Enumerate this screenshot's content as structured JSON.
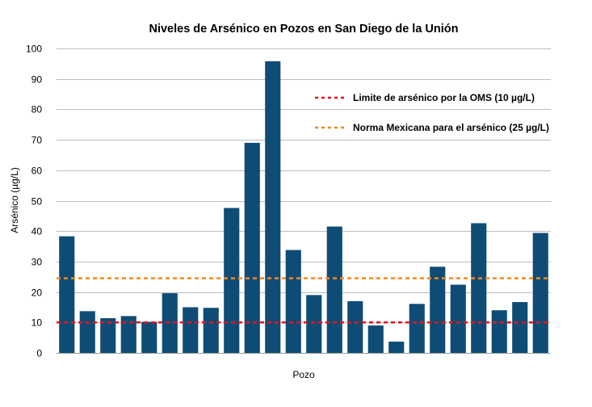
{
  "chart_data": {
    "type": "bar",
    "title": "Niveles de Arsénico en Pozos en San Diego de la Unión",
    "xlabel": "Pozo",
    "ylabel": "Arsénico (µg/L)",
    "ylim": [
      0,
      100
    ],
    "yticks": [
      0,
      10,
      20,
      30,
      40,
      50,
      60,
      70,
      80,
      90,
      100
    ],
    "grid": true,
    "bar_color": "#0f4c75",
    "values": [
      38.3,
      13.7,
      11.4,
      12.1,
      10.2,
      19.6,
      15.0,
      14.8,
      47.6,
      69.0,
      95.8,
      33.8,
      19.0,
      41.5,
      17.0,
      9.0,
      3.7,
      16.1,
      28.3,
      22.4,
      42.6,
      14.0,
      16.7,
      39.4
    ],
    "reference_lines": [
      {
        "label": "Limite de arsénico por la OMS (10 µg/L)",
        "value": 10,
        "color": "#e8121c",
        "style": "dashed"
      },
      {
        "label": "Norma Mexicana para el arsénico (25 µg/L)",
        "value": 24.5,
        "color": "#f28a1e",
        "style": "dashed"
      }
    ],
    "legend_position": "top-right"
  }
}
